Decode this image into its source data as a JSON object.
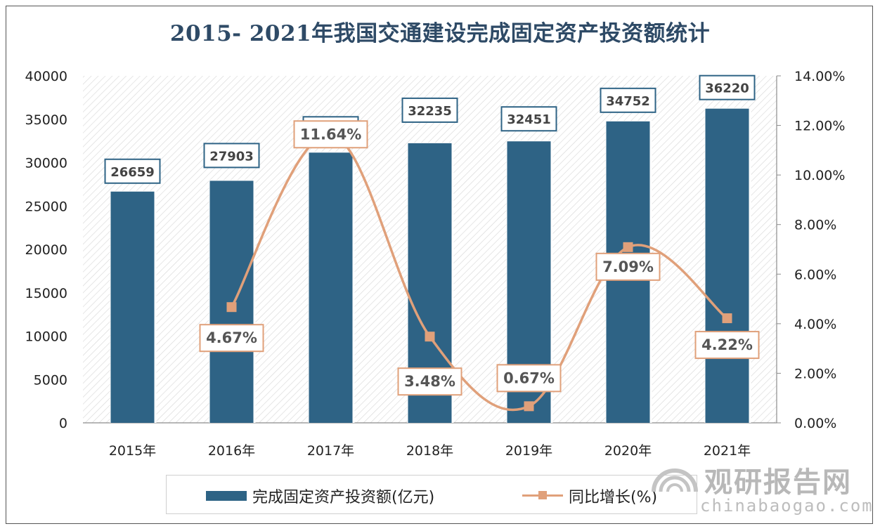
{
  "title": "2015- 2021年我国交通建设完成固定资产投资额统计",
  "chart_data": {
    "type": "bar",
    "categories": [
      "2015年",
      "2016年",
      "2017年",
      "2018年",
      "2019年",
      "2020年",
      "2021年"
    ],
    "series": [
      {
        "name": "完成固定资产投资额(亿元)",
        "type": "bar",
        "axis": "left",
        "values": [
          26659,
          27903,
          31151,
          32235,
          32451,
          34752,
          36220
        ],
        "labels": [
          "26659",
          "27903",
          "31151",
          "32235",
          "32451",
          "34752",
          "36220"
        ],
        "color": "#2e6385"
      },
      {
        "name": "同比增长(%)",
        "type": "line",
        "axis": "right",
        "values": [
          null,
          4.67,
          11.64,
          3.48,
          0.67,
          7.09,
          4.22
        ],
        "labels": [
          "",
          "4.67%",
          "11.64%",
          "3.48%",
          "0.67%",
          "7.09%",
          "4.22%"
        ],
        "color": "#e0a07a"
      }
    ],
    "y_left": {
      "range": [
        0,
        40000
      ],
      "ticks": [
        "0",
        "5000",
        "10000",
        "15000",
        "20000",
        "25000",
        "30000",
        "35000",
        "40000"
      ]
    },
    "y_right": {
      "range": [
        0,
        14
      ],
      "ticks": [
        "0.00%",
        "2.00%",
        "4.00%",
        "6.00%",
        "8.00%",
        "10.00%",
        "12.00%",
        "14.00%"
      ]
    },
    "grid": false,
    "legend_position": "bottom"
  },
  "watermark": {
    "brand": "观研报告网",
    "url": "chinabaogao.com"
  }
}
